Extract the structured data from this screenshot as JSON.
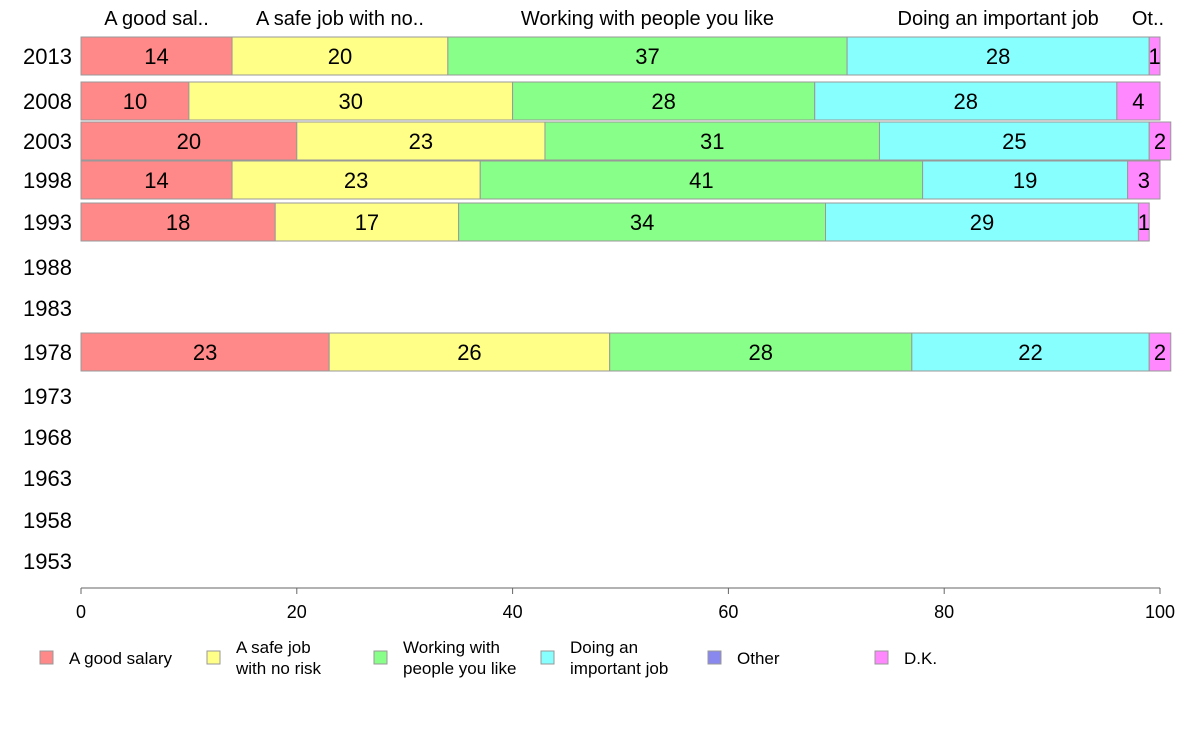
{
  "chart_data": {
    "type": "bar",
    "orientation": "horizontal",
    "stacked": true,
    "categories": [
      "2013",
      "2008",
      "2003",
      "1998",
      "1993",
      "1988",
      "1983",
      "1978",
      "1973",
      "1968",
      "1963",
      "1958",
      "1953"
    ],
    "series": [
      {
        "name": "A good salary",
        "legend_lines": [
          "A good salary"
        ],
        "color": "#ff8888",
        "values": [
          14,
          10,
          20,
          14,
          18,
          null,
          null,
          23,
          null,
          null,
          null,
          null,
          null
        ]
      },
      {
        "name": "A safe job with no risk",
        "legend_lines": [
          "A safe job",
          "with no risk"
        ],
        "color": "#ffff88",
        "values": [
          20,
          30,
          23,
          23,
          17,
          null,
          null,
          26,
          null,
          null,
          null,
          null,
          null
        ]
      },
      {
        "name": "Working with people you like",
        "legend_lines": [
          "Working with",
          "people you like"
        ],
        "color": "#88ff88",
        "values": [
          37,
          28,
          31,
          41,
          34,
          null,
          null,
          28,
          null,
          null,
          null,
          null,
          null
        ]
      },
      {
        "name": "Doing an important job",
        "legend_lines": [
          "Doing an",
          "important job"
        ],
        "color": "#88ffff",
        "values": [
          28,
          28,
          25,
          19,
          29,
          null,
          null,
          22,
          null,
          null,
          null,
          null,
          null
        ]
      },
      {
        "name": "Other",
        "legend_lines": [
          "Other"
        ],
        "color": "#8888ee",
        "values": [
          0,
          0,
          0,
          0,
          0,
          null,
          null,
          0,
          null,
          null,
          null,
          null,
          null
        ]
      },
      {
        "name": "D.K.",
        "legend_lines": [
          "D.K."
        ],
        "color": "#ff88ff",
        "values": [
          1,
          4,
          2,
          3,
          1,
          null,
          null,
          2,
          null,
          null,
          null,
          null,
          null
        ]
      }
    ],
    "column_labels": [
      "A good sal..",
      "A safe job with no..",
      "Working with people you like",
      "Doing an important job",
      "Ot.."
    ],
    "xlim": [
      0,
      100
    ],
    "xticks": [
      0,
      20,
      40,
      60,
      80,
      100
    ],
    "title": "",
    "xlabel": "",
    "ylabel": "",
    "legend_position": "bottom",
    "grid": false
  }
}
